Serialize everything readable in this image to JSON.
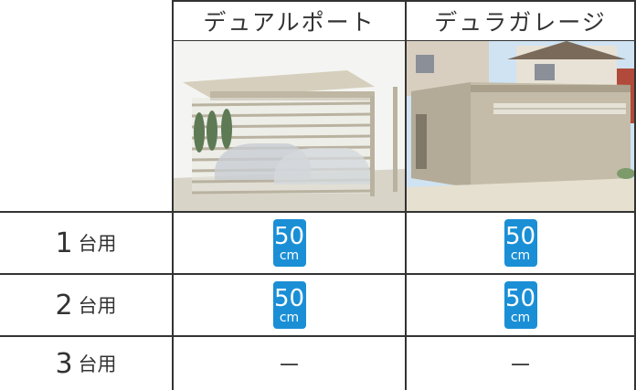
{
  "table": {
    "columns": [
      "デュアルポート",
      "デュラガレージ"
    ],
    "rows": [
      {
        "label": {
          "number": "1",
          "unit": "台用"
        },
        "cells": [
          {
            "value": "50",
            "unit": "cm"
          },
          {
            "value": "50",
            "unit": "cm"
          }
        ]
      },
      {
        "label": {
          "number": "2",
          "unit": "台用"
        },
        "cells": [
          {
            "value": "50",
            "unit": "cm"
          },
          {
            "value": "50",
            "unit": "cm"
          }
        ]
      },
      {
        "label": {
          "number": "3",
          "unit": "台用"
        },
        "cells": [
          {
            "text": "－"
          },
          {
            "text": "－"
          }
        ]
      }
    ]
  }
}
